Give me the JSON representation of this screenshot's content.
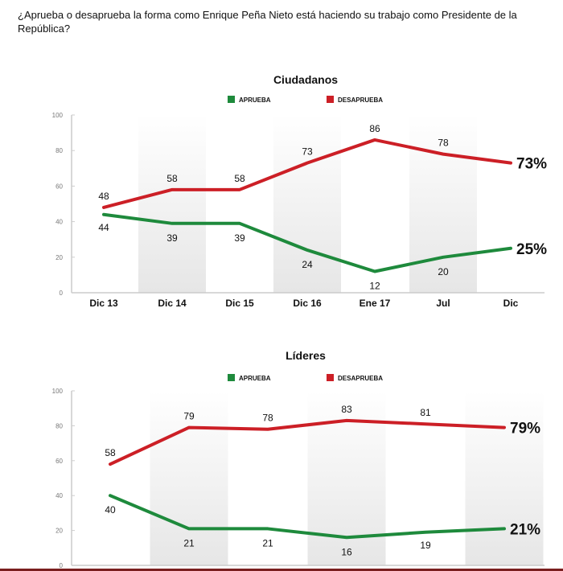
{
  "question": "¿Aprueba o desaprueba la forma como Enrique Peña Nieto está haciendo su trabajo como Presidente de la República?",
  "colors": {
    "approve": "#1e8a3c",
    "disapprove": "#cc1f26",
    "band": "#e9e9e9",
    "axis": "#cccccc",
    "text": "#111111"
  },
  "chart_data": [
    {
      "type": "line",
      "title": "Ciudadanos",
      "legend": [
        "APRUEBA",
        "DESAPRUEBA"
      ],
      "legend_position": "top-center",
      "categories": [
        "Dic 13",
        "Dic 14",
        "Dic 15",
        "Dic 16",
        "Ene 17",
        "Jul",
        "Dic"
      ],
      "yticks": [
        "0",
        "20",
        "40",
        "60",
        "80",
        "100"
      ],
      "ylim": [
        0,
        100
      ],
      "xlabel": "",
      "ylabel": "",
      "series": [
        {
          "name": "APRUEBA",
          "values": [
            44,
            39,
            39,
            24,
            12,
            20,
            25
          ],
          "labels": [
            "44",
            "39",
            "39",
            "24",
            "12",
            "20",
            "25%"
          ]
        },
        {
          "name": "DESAPRUEBA",
          "values": [
            48,
            58,
            58,
            73,
            86,
            78,
            73
          ],
          "labels": [
            "48",
            "58",
            "58",
            "73",
            "86",
            "78",
            "73%"
          ]
        }
      ]
    },
    {
      "type": "line",
      "title": "Líderes",
      "legend": [
        "APRUEBA",
        "DESAPRUEBA"
      ],
      "legend_position": "top-center",
      "categories": [
        "",
        "",
        "",
        "",
        "",
        ""
      ],
      "yticks": [
        "0",
        "20",
        "40",
        "60",
        "80",
        "100"
      ],
      "ylim": [
        0,
        100
      ],
      "xlabel": "",
      "ylabel": "",
      "series": [
        {
          "name": "APRUEBA",
          "values": [
            40,
            21,
            21,
            16,
            19,
            21
          ],
          "labels": [
            "40",
            "21",
            "21",
            "16",
            "19",
            "21%"
          ]
        },
        {
          "name": "DESAPRUEBA",
          "values": [
            58,
            79,
            78,
            83,
            81,
            79
          ],
          "labels": [
            "58",
            "79",
            "78",
            "83",
            "81",
            "79%"
          ]
        }
      ]
    }
  ]
}
